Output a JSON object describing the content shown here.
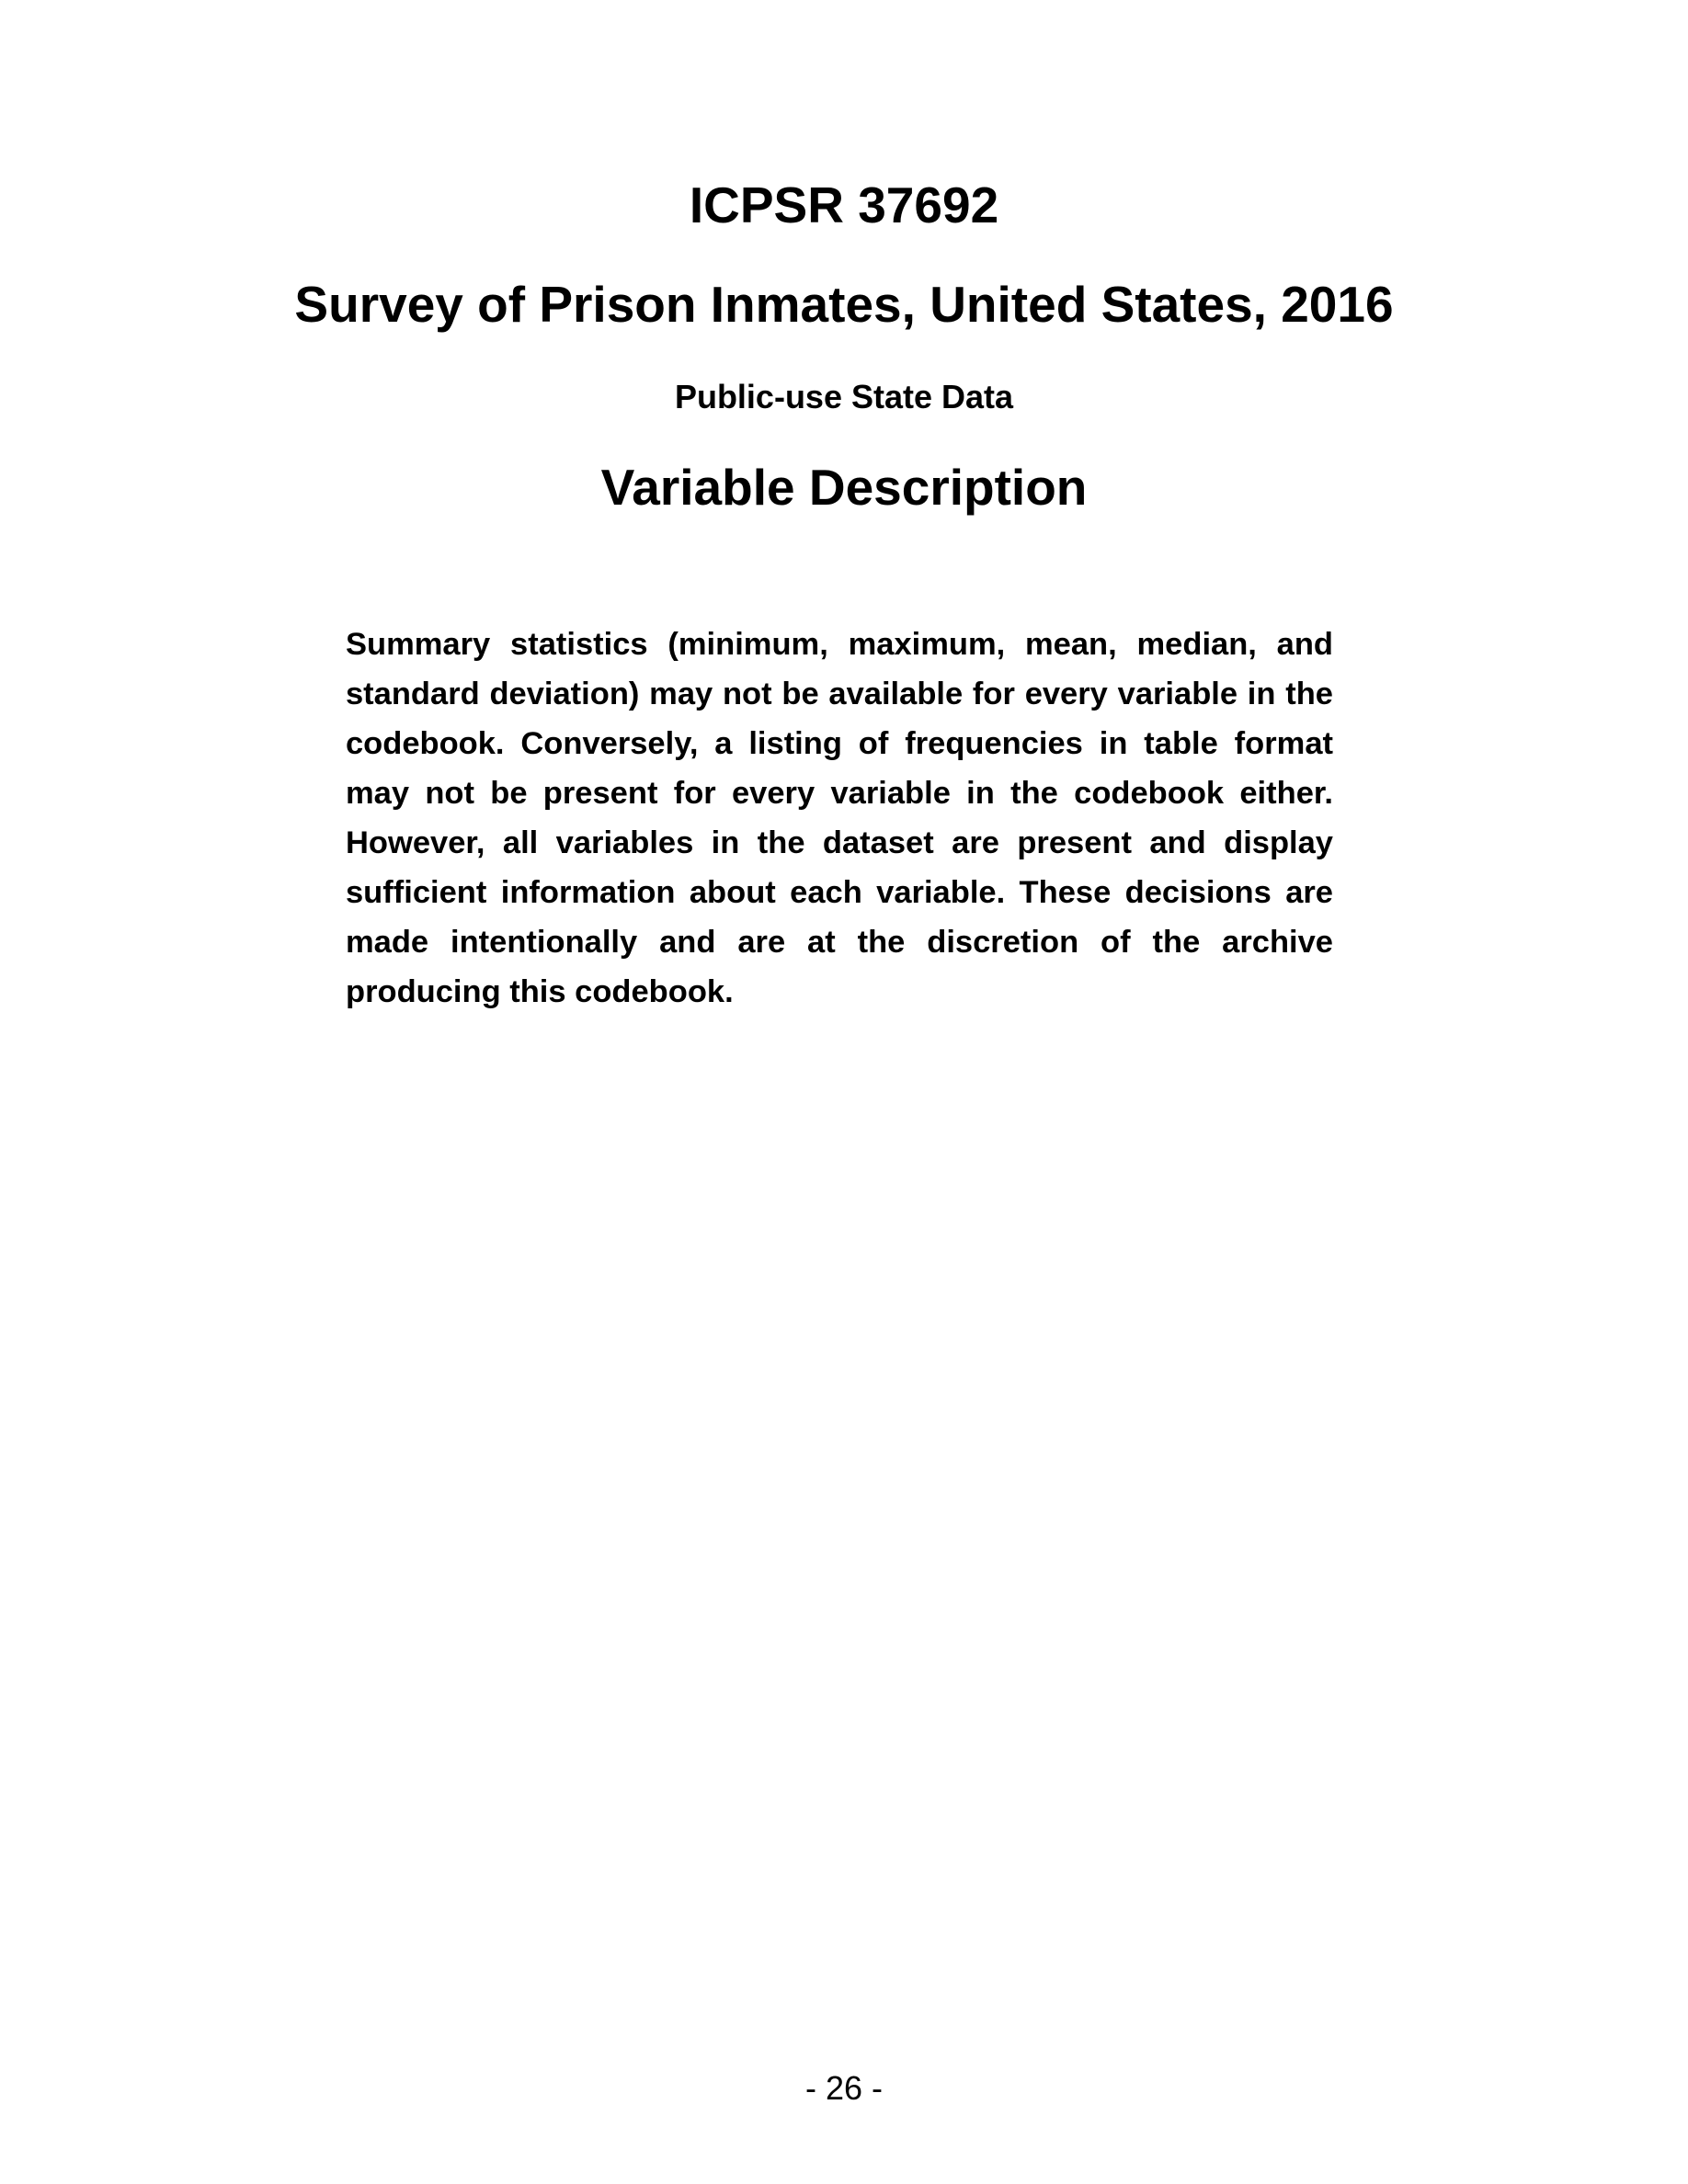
{
  "header": {
    "study_id": "ICPSR 37692",
    "study_title": "Survey of Prison Inmates, United States, 2016",
    "subtitle": "Public-use State Data",
    "section_heading": "Variable Description"
  },
  "body": {
    "notice": "Summary statistics (minimum, maximum, mean, median, and standard deviation) may not be available for every variable in the codebook. Conversely, a listing of frequencies in table format may not be present for every variable in the codebook either. However, all variables in the dataset are present and display sufficient information about each variable. These decisions are made intentionally and are at the discretion of the archive producing this codebook."
  },
  "footer": {
    "page_number": "- 26 -"
  }
}
